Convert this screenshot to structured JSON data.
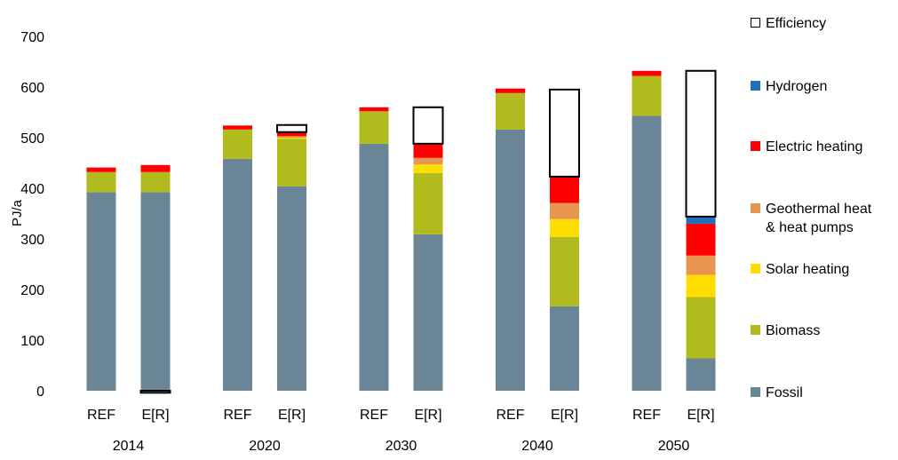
{
  "chart_data": {
    "type": "bar",
    "stacked": true,
    "ylabel": "PJ/a",
    "xlabel": "",
    "title": "",
    "ylim": [
      0,
      700
    ],
    "yticks": [
      0,
      100,
      200,
      300,
      400,
      500,
      600,
      700
    ],
    "grid": false,
    "legend_position": "right",
    "years": [
      "2014",
      "2020",
      "2030",
      "2040",
      "2050"
    ],
    "scenarios": [
      "REF",
      "E[R]"
    ],
    "categories": [
      "REF",
      "E[R]",
      "REF",
      "E[R]",
      "REF",
      "E[R]",
      "REF",
      "E[R]",
      "REF",
      "E[R]"
    ],
    "series": [
      {
        "name": "Fossil",
        "color": "#6a8696",
        "values": [
          392,
          392,
          458,
          404,
          488,
          309,
          516,
          167,
          543,
          64
        ]
      },
      {
        "name": "Biomass",
        "color": "#b2bb1e",
        "values": [
          40,
          40,
          58,
          94,
          64,
          121,
          72,
          137,
          79,
          121
        ]
      },
      {
        "name": "Solar heating",
        "color": "#ffdd00",
        "values": [
          0,
          0,
          0,
          2,
          0,
          17,
          0,
          35,
          0,
          44
        ]
      },
      {
        "name": "Geothermal heat\n& heat pumps",
        "color": "#e8954f",
        "values": [
          0,
          0,
          0,
          3,
          0,
          13,
          0,
          32,
          0,
          38
        ]
      },
      {
        "name": "Electric heating",
        "color": "#ff0000",
        "values": [
          9,
          14,
          8,
          8,
          8,
          28,
          9,
          52,
          10,
          63
        ]
      },
      {
        "name": "Hydrogen",
        "color": "#1f6fbf",
        "values": [
          0,
          0,
          0,
          0,
          0,
          0,
          0,
          0,
          0,
          14
        ]
      },
      {
        "name": "Efficiency",
        "color": "#ffffff",
        "values": [
          0,
          -4,
          0,
          14,
          0,
          72,
          0,
          172,
          0,
          288
        ]
      }
    ]
  },
  "legend": {
    "order": [
      "Efficiency",
      "Hydrogen",
      "Electric heating",
      "Geothermal heat\n& heat pumps",
      "Solar heating",
      "Biomass",
      "Fossil"
    ]
  }
}
